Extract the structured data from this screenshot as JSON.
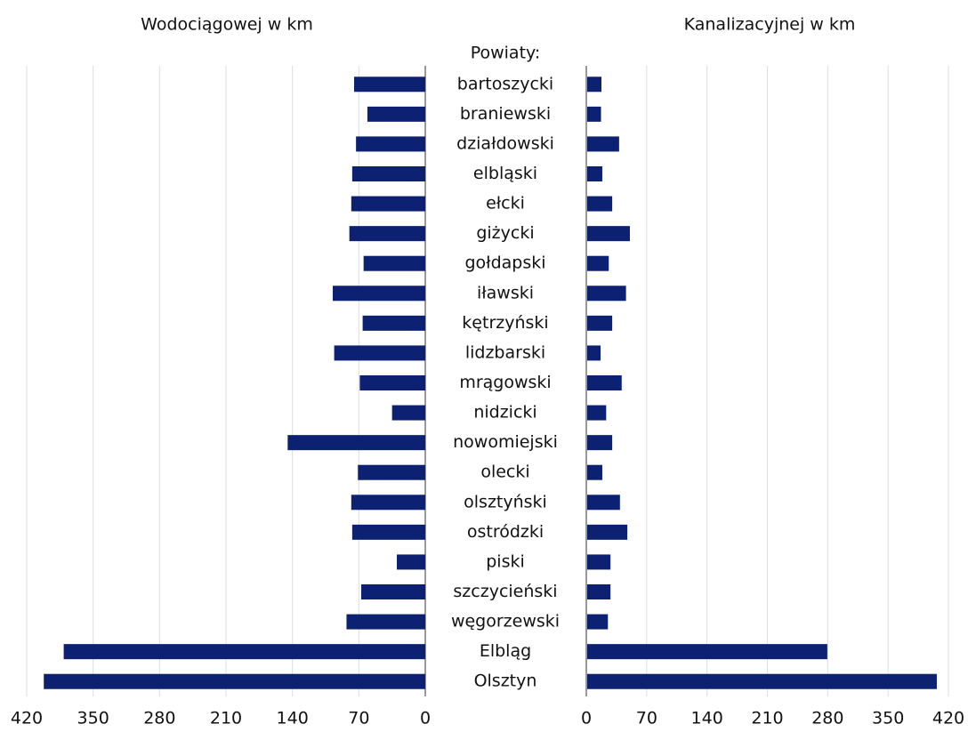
{
  "chart_data": {
    "type": "butterfly",
    "category_title": "Powiaty:",
    "categories": [
      "bartoszycki",
      "braniewski",
      "działdowski",
      "elbląski",
      "ełcki",
      "giżycki",
      "gołdapski",
      "iławski",
      "kętrzyński",
      "lidzbarski",
      "mrągowski",
      "nidzicki",
      "nowomiejski",
      "olecki",
      "olsztyński",
      "ostródzki",
      "piski",
      "szczycieński",
      "węgorzewski",
      "Elbląg",
      "Olsztyn"
    ],
    "color": "#0c2172",
    "grid": true,
    "series": [
      {
        "name": "Wodociągowej w km",
        "side": "left",
        "xlim": [
          0,
          420
        ],
        "xticks": [
          0,
          70,
          140,
          210,
          280,
          350,
          420
        ],
        "values": [
          75,
          61,
          73,
          77,
          78,
          80,
          65,
          97.5,
          66,
          96,
          69,
          35,
          145,
          71,
          78,
          77,
          30,
          67.5,
          83,
          381,
          402
        ]
      },
      {
        "name": "Kanalizacyjnej w km",
        "side": "right",
        "xlim": [
          0,
          420
        ],
        "xticks": [
          0,
          70,
          140,
          210,
          280,
          350,
          420
        ],
        "values": [
          16.5,
          16,
          37,
          17.5,
          29,
          49.5,
          25,
          45,
          29,
          15.5,
          40,
          22,
          29,
          17.5,
          38,
          46.5,
          27,
          27,
          24,
          278.5,
          405.5
        ]
      }
    ]
  }
}
